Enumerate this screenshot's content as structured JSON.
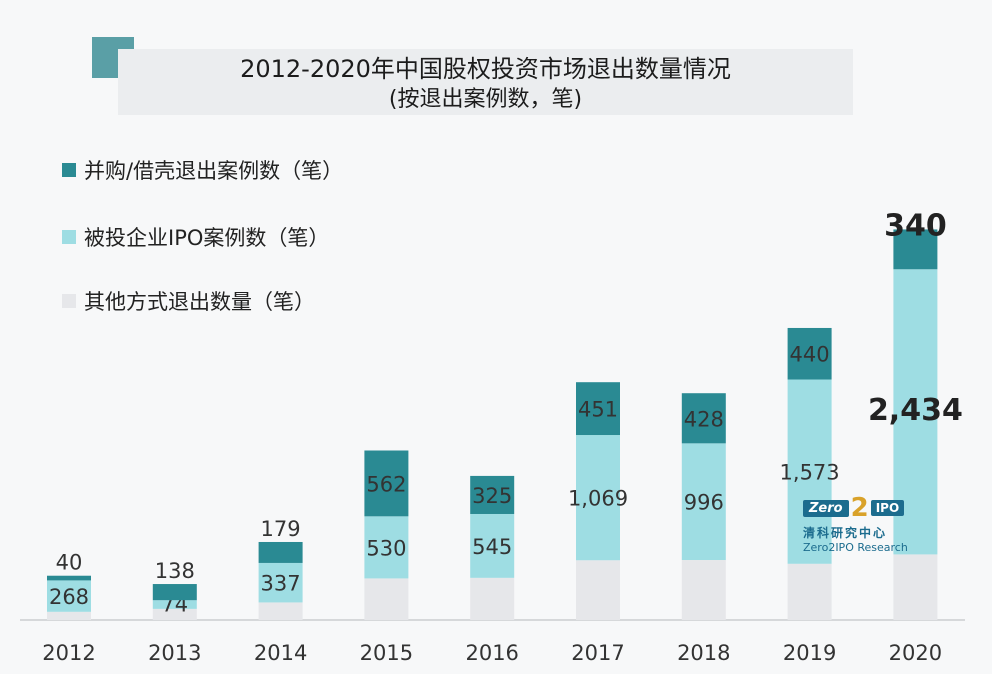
{
  "title": "2012-2020年中国股权投资市场退出数量情况",
  "subtitle": "(按退出案例数，笔)",
  "legend": [
    {
      "label": "并购/借壳退出案例数（笔）",
      "color": "#2a8a93"
    },
    {
      "label": "被投企业IPO案例数（笔）",
      "color": "#9edde3"
    },
    {
      "label": "其他方式退出数量（笔）",
      "color": "#e6e7ea"
    }
  ],
  "logo": {
    "zero": "Zero",
    "two": "2",
    "ipo": "IPO",
    "cn": "清科研究中心",
    "en": "Zero2IPO Research"
  },
  "chart_data": {
    "type": "bar",
    "stacked": true,
    "categories": [
      "2012",
      "2013",
      "2014",
      "2015",
      "2016",
      "2017",
      "2018",
      "2019",
      "2020"
    ],
    "series": [
      {
        "name": "其他方式退出数量（笔）",
        "color": "#e6e7ea",
        "values": [
          70,
          95,
          150,
          355,
          360,
          510,
          512,
          480,
          560
        ],
        "labels": [
          "",
          "",
          "",
          "",
          "",
          "",
          "",
          "",
          ""
        ]
      },
      {
        "name": "被投企业IPO案例数（笔）",
        "color": "#9edde3",
        "values": [
          268,
          74,
          337,
          530,
          545,
          1069,
          996,
          1573,
          2434
        ],
        "labels": [
          "268",
          "74",
          "337",
          "530",
          "545",
          "1,069",
          "996",
          "1,573",
          "2,434"
        ]
      },
      {
        "name": "并购/借壳退出案例数（笔）",
        "color": "#2a8a93",
        "values": [
          40,
          138,
          179,
          562,
          325,
          451,
          428,
          440,
          340
        ],
        "labels": [
          "40",
          "138",
          "179",
          "562",
          "325",
          "451",
          "428",
          "440",
          "340"
        ]
      }
    ],
    "ylim": [
      0,
      3500
    ],
    "grid": false,
    "legend_position": "top-left"
  }
}
